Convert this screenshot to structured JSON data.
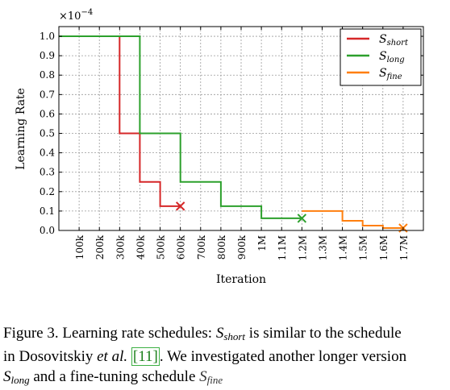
{
  "chart_data": {
    "type": "line",
    "xlabel": "Iteration",
    "ylabel": "Learning Rate",
    "y_multiplier": "×10",
    "y_multiplier_exp": "−4",
    "xlim": [
      0,
      1800000
    ],
    "ylim": [
      0,
      1.05
    ],
    "grid": true,
    "legend_position": "top-right",
    "x_ticks": [
      {
        "v": 100000,
        "label": "100k"
      },
      {
        "v": 200000,
        "label": "200k"
      },
      {
        "v": 300000,
        "label": "300k"
      },
      {
        "v": 400000,
        "label": "400k"
      },
      {
        "v": 500000,
        "label": "500k"
      },
      {
        "v": 600000,
        "label": "600k"
      },
      {
        "v": 700000,
        "label": "700k"
      },
      {
        "v": 800000,
        "label": "800k"
      },
      {
        "v": 900000,
        "label": "900k"
      },
      {
        "v": 1000000,
        "label": "1M"
      },
      {
        "v": 1100000,
        "label": "1.1M"
      },
      {
        "v": 1200000,
        "label": "1.2M"
      },
      {
        "v": 1300000,
        "label": "1.3M"
      },
      {
        "v": 1400000,
        "label": "1.4M"
      },
      {
        "v": 1500000,
        "label": "1.5M"
      },
      {
        "v": 1600000,
        "label": "1.6M"
      },
      {
        "v": 1700000,
        "label": "1.7M"
      }
    ],
    "y_ticks": [
      {
        "v": 0.0,
        "label": "0.0"
      },
      {
        "v": 0.1,
        "label": "0.1"
      },
      {
        "v": 0.2,
        "label": "0.2"
      },
      {
        "v": 0.3,
        "label": "0.3"
      },
      {
        "v": 0.4,
        "label": "0.4"
      },
      {
        "v": 0.5,
        "label": "0.5"
      },
      {
        "v": 0.6,
        "label": "0.6"
      },
      {
        "v": 0.7,
        "label": "0.7"
      },
      {
        "v": 0.8,
        "label": "0.8"
      },
      {
        "v": 0.9,
        "label": "0.9"
      },
      {
        "v": 1.0,
        "label": "1.0"
      }
    ],
    "series": [
      {
        "name": "S",
        "name_sub": "short",
        "color": "#d62728",
        "points": [
          [
            0,
            1.0
          ],
          [
            300000,
            1.0
          ],
          [
            300000,
            0.5
          ],
          [
            400000,
            0.5
          ],
          [
            400000,
            0.25
          ],
          [
            500000,
            0.25
          ],
          [
            500000,
            0.125
          ],
          [
            600000,
            0.125
          ]
        ],
        "end_marker": [
          600000,
          0.125
        ]
      },
      {
        "name": "S",
        "name_sub": "long",
        "color": "#2ca02c",
        "points": [
          [
            0,
            1.0
          ],
          [
            400000,
            1.0
          ],
          [
            400000,
            0.5
          ],
          [
            600000,
            0.5
          ],
          [
            600000,
            0.25
          ],
          [
            800000,
            0.25
          ],
          [
            800000,
            0.125
          ],
          [
            1000000,
            0.125
          ],
          [
            1000000,
            0.0625
          ],
          [
            1200000,
            0.0625
          ]
        ],
        "end_marker": [
          1200000,
          0.0625
        ]
      },
      {
        "name": "S",
        "name_sub": "fine",
        "color": "#ff7f0e",
        "points": [
          [
            1200000,
            0.1
          ],
          [
            1400000,
            0.1
          ],
          [
            1400000,
            0.05
          ],
          [
            1500000,
            0.05
          ],
          [
            1500000,
            0.025
          ],
          [
            1600000,
            0.025
          ],
          [
            1600000,
            0.0125
          ],
          [
            1700000,
            0.0125
          ]
        ],
        "end_marker": [
          1700000,
          0.0125
        ]
      }
    ]
  },
  "caption": {
    "line1_prefix": "Figure 3. Learning rate schedules: ",
    "s1": "S",
    "s1_sub": "short",
    "line1_suffix": " is similar to the schedule",
    "line2_prefix": "in Dosovitskiy ",
    "line2_etal": "et al.",
    "line2_space": " ",
    "line2_ref": "[11]",
    "line2_suffix": ".  We investigated another longer version",
    "s2": "S",
    "s2_sub": "long",
    "line3_mid": " and a fine-tuning schedule ",
    "s3": "S",
    "s3_sub": "fine"
  }
}
